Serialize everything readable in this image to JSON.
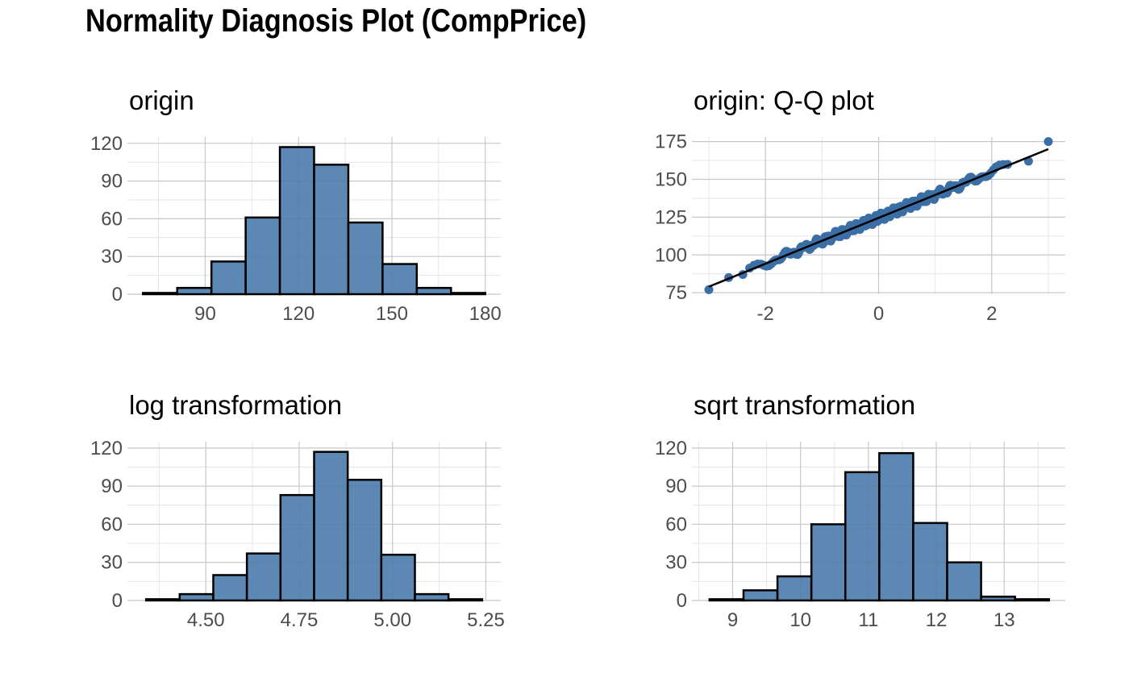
{
  "title": "Normality Diagnosis Plot (CompPrice)",
  "colors": {
    "bar_fill": "#4a7bab",
    "point": "#3a6ea5",
    "line": "#000000"
  },
  "chart_data": [
    {
      "id": "origin",
      "type": "bar",
      "title": "origin",
      "bin_edges": [
        70,
        81,
        92,
        103,
        114,
        125,
        136,
        147,
        158,
        169,
        180
      ],
      "values": [
        1,
        5,
        26,
        61,
        117,
        103,
        57,
        24,
        5,
        1
      ],
      "xlim": [
        65,
        185
      ],
      "ylim": [
        0,
        125
      ],
      "xticks": [
        90,
        120,
        150,
        180
      ],
      "yticks": [
        0,
        30,
        60,
        90,
        120
      ]
    },
    {
      "id": "qq",
      "type": "scatter",
      "title": "origin: Q-Q plot",
      "x_range": [
        -3.0,
        3.0
      ],
      "y_range": [
        77,
        175
      ],
      "extreme_points": [
        [
          -3.0,
          77
        ],
        [
          -2.65,
          85
        ],
        [
          -2.4,
          87
        ],
        [
          2.65,
          162
        ],
        [
          3.0,
          175
        ]
      ],
      "reference_line": [
        [
          -3.0,
          79
        ],
        [
          3.0,
          170
        ]
      ],
      "xlim": [
        -3.3,
        3.3
      ],
      "ylim": [
        74,
        178
      ],
      "xticks": [
        -2,
        0,
        2
      ],
      "xtick_labels": [
        "-2",
        "0",
        "2"
      ],
      "yticks": [
        75,
        100,
        125,
        150,
        175
      ]
    },
    {
      "id": "log",
      "type": "bar",
      "title": "log transformation",
      "bin_edges": [
        4.34,
        4.43,
        4.52,
        4.61,
        4.7,
        4.79,
        4.88,
        4.97,
        5.06,
        5.15,
        5.24
      ],
      "values": [
        1,
        5,
        20,
        37,
        83,
        117,
        95,
        36,
        5,
        1
      ],
      "xlim": [
        4.29,
        5.29
      ],
      "ylim": [
        0,
        125
      ],
      "xticks": [
        4.5,
        4.75,
        5.0,
        5.25
      ],
      "xtick_labels": [
        "4.50",
        "4.75",
        "5.00",
        "5.25"
      ],
      "yticks": [
        0,
        30,
        60,
        90,
        120
      ]
    },
    {
      "id": "sqrt",
      "type": "bar",
      "title": "sqrt transformation",
      "bin_edges": [
        8.66,
        9.16,
        9.66,
        10.16,
        10.66,
        11.16,
        11.66,
        12.16,
        12.66,
        13.16,
        13.66
      ],
      "values": [
        1,
        8,
        19,
        60,
        101,
        116,
        61,
        30,
        3,
        1
      ],
      "xlim": [
        8.4,
        13.9
      ],
      "ylim": [
        0,
        125
      ],
      "xticks": [
        9,
        10,
        11,
        12,
        13
      ],
      "yticks": [
        0,
        30,
        60,
        90,
        120
      ]
    }
  ]
}
